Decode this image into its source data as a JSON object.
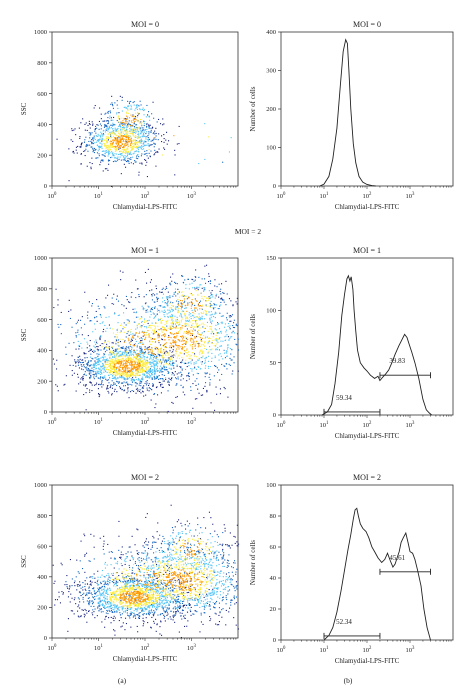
{
  "middle_label": "MOI = 2",
  "panel_labels": [
    "(a)",
    "(b)"
  ],
  "colors": {
    "scatter_low": "#1a237e",
    "scatter_mid": "#4fc3f7",
    "scatter_high": "#ffeb3b",
    "scatter_peak": "#ff9800",
    "line": "#222222"
  },
  "chart_data": [
    {
      "type": "scatter",
      "title": "MOI = 0",
      "xlabel": "Chlamydial-LPS-FITC",
      "ylabel": "SSC",
      "xscale": "log",
      "xlim": [
        1,
        10000
      ],
      "xticks": [
        {
          "value": 1,
          "base": "10",
          "exp": "0"
        },
        {
          "value": 10,
          "base": "10",
          "exp": "1"
        },
        {
          "value": 100,
          "base": "10",
          "exp": "2"
        },
        {
          "value": 1000,
          "base": "10",
          "exp": "3"
        }
      ],
      "ylim": [
        0,
        1000
      ],
      "yticks": [
        "0",
        "200",
        "400",
        "600",
        "800",
        "1000"
      ],
      "clusters": [
        {
          "cx": 30,
          "cy": 290,
          "sx": 0.18,
          "sy": 75,
          "n": 900
        },
        {
          "cx": 45,
          "cy": 420,
          "sx": 0.14,
          "sy": 80,
          "n": 250
        },
        {
          "cx": 500,
          "cy": 300,
          "sx": 0.5,
          "sy": 110,
          "n": 25
        }
      ]
    },
    {
      "type": "line",
      "title": "MOI = 0",
      "xlabel": "Chlamydial-LPS-FITC",
      "ylabel": "Number of cells",
      "xscale": "log",
      "xlim": [
        1,
        10000
      ],
      "xticks": [
        {
          "value": 1,
          "base": "10",
          "exp": "0"
        },
        {
          "value": 10,
          "base": "10",
          "exp": "1"
        },
        {
          "value": 100,
          "base": "10",
          "exp": "2"
        },
        {
          "value": 1000,
          "base": "10",
          "exp": "3"
        }
      ],
      "ylim": [
        0,
        400
      ],
      "yticks": [
        "0",
        "100",
        "200",
        "300",
        "400"
      ],
      "x": [
        8,
        10,
        13,
        16,
        20,
        24,
        28,
        32,
        35,
        38,
        42,
        48,
        55,
        65,
        80,
        100,
        130,
        160
      ],
      "y": [
        0,
        5,
        25,
        70,
        150,
        260,
        350,
        380,
        370,
        300,
        200,
        110,
        60,
        25,
        10,
        4,
        1,
        0
      ]
    },
    {
      "type": "scatter",
      "title": "MOI = 1",
      "xlabel": "Chlamydial-LPS-FITC",
      "ylabel": "SSC",
      "xscale": "log",
      "xlim": [
        1,
        10000
      ],
      "xticks": [
        {
          "value": 1,
          "base": "10",
          "exp": "0"
        },
        {
          "value": 10,
          "base": "10",
          "exp": "1"
        },
        {
          "value": 100,
          "base": "10",
          "exp": "2"
        },
        {
          "value": 1000,
          "base": "10",
          "exp": "3"
        }
      ],
      "ylim": [
        0,
        1000
      ],
      "yticks": [
        "0",
        "200",
        "400",
        "600",
        "800",
        "1000"
      ],
      "clusters": [
        {
          "cx": 40,
          "cy": 300,
          "sx": 0.22,
          "sy": 70,
          "n": 1300
        },
        {
          "cx": 600,
          "cy": 480,
          "sx": 0.35,
          "sy": 150,
          "n": 900
        },
        {
          "cx": 150,
          "cy": 450,
          "sx": 0.5,
          "sy": 170,
          "n": 700
        },
        {
          "cx": 900,
          "cy": 700,
          "sx": 0.2,
          "sy": 100,
          "n": 300
        }
      ]
    },
    {
      "type": "line",
      "title": "MOI = 1",
      "xlabel": "Chlamydial-LPS-FITC",
      "ylabel": "Number of cells",
      "xscale": "log",
      "xlim": [
        1,
        10000
      ],
      "xticks": [
        {
          "value": 1,
          "base": "10",
          "exp": "0"
        },
        {
          "value": 10,
          "base": "10",
          "exp": "1"
        },
        {
          "value": 100,
          "base": "10",
          "exp": "2"
        },
        {
          "value": 1000,
          "base": "10",
          "exp": "3"
        }
      ],
      "ylim": [
        0,
        150
      ],
      "yticks": [
        "0",
        "50",
        "100",
        "150"
      ],
      "x": [
        9,
        12,
        15,
        18,
        22,
        26,
        30,
        34,
        37,
        40,
        43,
        47,
        50,
        55,
        60,
        70,
        85,
        100,
        120,
        150,
        180,
        200,
        230,
        270,
        320,
        380,
        450,
        550,
        650,
        750,
        850,
        950,
        1100,
        1300,
        1600,
        2000,
        2400,
        2800,
        3200
      ],
      "y": [
        0,
        3,
        10,
        30,
        60,
        95,
        115,
        130,
        133,
        128,
        132,
        120,
        100,
        80,
        62,
        50,
        45,
        42,
        38,
        35,
        37,
        33,
        36,
        39,
        43,
        50,
        58,
        66,
        72,
        77,
        74,
        68,
        60,
        50,
        35,
        15,
        5,
        2,
        0
      ],
      "gates": [
        {
          "label": "59.34",
          "x0": 10,
          "x1": 200,
          "y": 2
        },
        {
          "label": "39.83",
          "x0": 200,
          "x1": 3000,
          "y": 38
        }
      ]
    },
    {
      "type": "scatter",
      "title": "MOI = 2",
      "xlabel": "Chlamydial-LPS-FITC",
      "ylabel": "SSC",
      "xscale": "log",
      "xlim": [
        1,
        10000
      ],
      "xticks": [
        {
          "value": 1,
          "base": "10",
          "exp": "0"
        },
        {
          "value": 10,
          "base": "10",
          "exp": "1"
        },
        {
          "value": 100,
          "base": "10",
          "exp": "2"
        },
        {
          "value": 1000,
          "base": "10",
          "exp": "3"
        }
      ],
      "ylim": [
        0,
        1000
      ],
      "yticks": [
        "0",
        "200",
        "400",
        "600",
        "800",
        "1000"
      ],
      "clusters": [
        {
          "cx": 55,
          "cy": 270,
          "sx": 0.25,
          "sy": 70,
          "n": 1300
        },
        {
          "cx": 700,
          "cy": 380,
          "sx": 0.3,
          "sy": 130,
          "n": 900
        },
        {
          "cx": 200,
          "cy": 380,
          "sx": 0.45,
          "sy": 130,
          "n": 700
        },
        {
          "cx": 1000,
          "cy": 580,
          "sx": 0.2,
          "sy": 90,
          "n": 250
        }
      ]
    },
    {
      "type": "line",
      "title": "MOI = 2",
      "xlabel": "Chlamydial-LPS-FITC",
      "ylabel": "Number of cells",
      "xscale": "log",
      "xlim": [
        1,
        10000
      ],
      "xticks": [
        {
          "value": 1,
          "base": "10",
          "exp": "0"
        },
        {
          "value": 10,
          "base": "10",
          "exp": "1"
        },
        {
          "value": 100,
          "base": "10",
          "exp": "2"
        },
        {
          "value": 1000,
          "base": "10",
          "exp": "3"
        }
      ],
      "ylim": [
        0,
        100
      ],
      "yticks": [
        "0",
        "20",
        "40",
        "60",
        "80",
        "100"
      ],
      "x": [
        10,
        13,
        16,
        20,
        25,
        30,
        36,
        42,
        48,
        53,
        58,
        63,
        70,
        80,
        95,
        110,
        130,
        150,
        180,
        220,
        260,
        300,
        350,
        400,
        450,
        500,
        560,
        620,
        700,
        800,
        900,
        1000,
        1150,
        1300,
        1500,
        1800,
        2100,
        2500,
        3000
      ],
      "y": [
        0,
        3,
        8,
        18,
        32,
        45,
        58,
        68,
        78,
        84,
        85,
        80,
        75,
        72,
        70,
        66,
        60,
        57,
        53,
        50,
        52,
        56,
        51,
        47,
        49,
        53,
        57,
        63,
        66,
        69,
        63,
        57,
        56,
        52,
        45,
        35,
        20,
        8,
        0
      ],
      "gates": [
        {
          "label": "52.34",
          "x0": 10,
          "x1": 200,
          "y": 2
        },
        {
          "label": "45.61",
          "x0": 200,
          "x1": 3000,
          "y": 44
        }
      ]
    }
  ]
}
